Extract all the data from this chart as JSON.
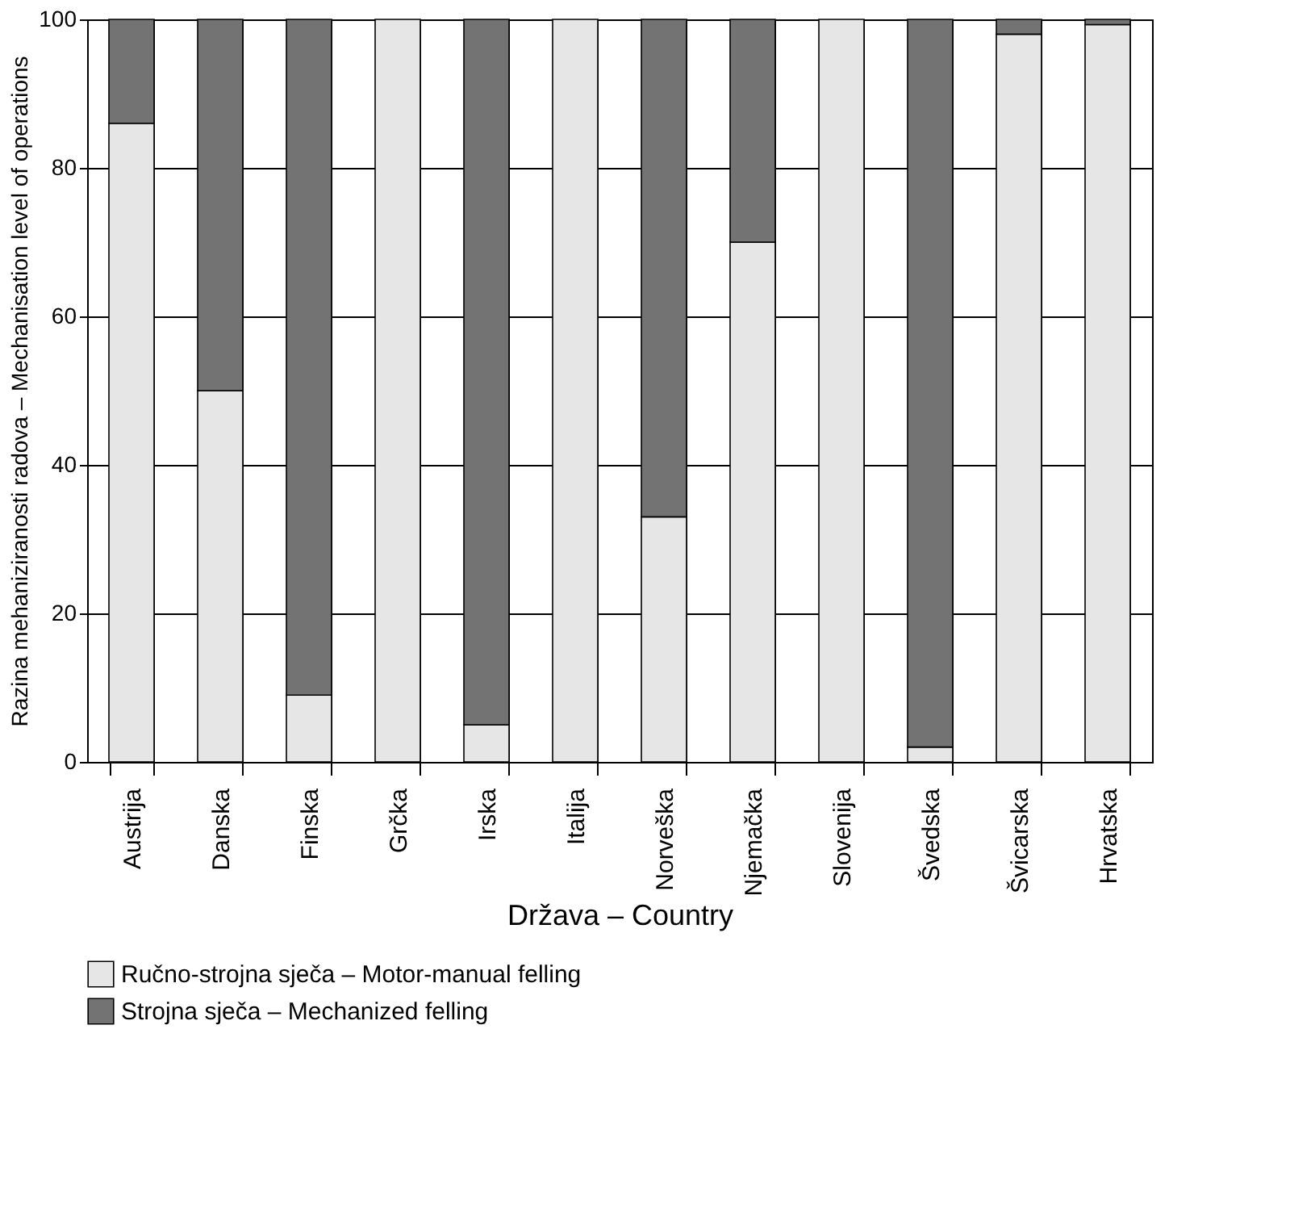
{
  "chart_data": {
    "type": "bar",
    "stacked": true,
    "xlabel": "Država – Country",
    "ylabel": "Razina mehaniziranosti radova – Mechanisation level of operations",
    "categories": [
      "Austrija",
      "Danska",
      "Finska",
      "Grčka",
      "Irska",
      "Italija",
      "Norveška",
      "Njemačka",
      "Slovenija",
      "Švedska",
      "Švicarska",
      "Hrvatska"
    ],
    "series": [
      {
        "name": "Ručno-strojna sječa – Motor-manual felling",
        "color": "#e6e6e6",
        "values": [
          86,
          50,
          9,
          100,
          5,
          100,
          33,
          70,
          100,
          2,
          98,
          99.3
        ]
      },
      {
        "name": "Strojna sječa – Mechanized felling",
        "color": "#737373",
        "values": [
          14,
          50,
          91,
          0,
          95,
          0,
          67,
          30,
          0,
          98,
          2,
          0.7
        ]
      }
    ],
    "ylim": [
      0,
      100
    ],
    "yticks": [
      0,
      20,
      40,
      60,
      80,
      100
    ],
    "grid": true,
    "legend": "bottom left"
  }
}
